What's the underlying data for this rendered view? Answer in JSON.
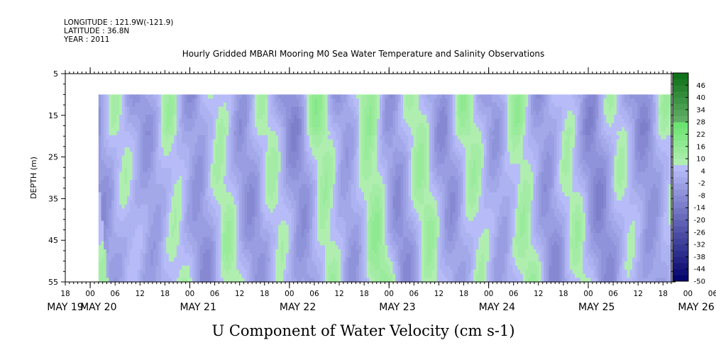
{
  "header": {
    "longitude": "LONGITUDE : 121.9W(-121.9)",
    "latitude": "LATITUDE : 36.8N",
    "year": "YEAR : 2011",
    "title": "Hourly Gridded MBARI Mooring M0 Sea Water Temperature and Salinity Observations"
  },
  "chart_data": {
    "type": "heatmap",
    "title": "Hourly Gridded MBARI Mooring M0 Sea Water Temperature and Salinity Observations",
    "xlabel": "U Component of Water Velocity (cm s-1)",
    "ylabel": "DEPTH (m)",
    "x_range_hours": [
      -6,
      140
    ],
    "x_data_start_hour": 2,
    "y_range": [
      5,
      55
    ],
    "y_data_range": [
      10,
      55
    ],
    "y_reversed": true,
    "y_ticks": [
      5,
      15,
      25,
      35,
      45,
      55
    ],
    "x_hour_ticks": [
      "18",
      "00",
      "06",
      "12",
      "18",
      "00",
      "06",
      "12",
      "18",
      "00",
      "06",
      "12",
      "18",
      "00",
      "06",
      "12",
      "18",
      "00",
      "06",
      "12",
      "18",
      "00",
      "06",
      "12",
      "18",
      "00",
      "06",
      "12",
      "18",
      "00",
      "06",
      "12",
      "18"
    ],
    "x_day_labels": [
      "MAY 19",
      "MAY 20",
      "MAY 21",
      "MAY 22",
      "MAY 23",
      "MAY 24",
      "MAY 25",
      "MAY 26"
    ],
    "colorbar": {
      "labels": [
        "46",
        "40",
        "34",
        "28",
        "22",
        "16",
        "10",
        "4",
        "-2",
        "-8",
        "-14",
        "-20",
        "-26",
        "-32",
        "-38",
        "-44",
        "-50"
      ],
      "min": -50,
      "max": 52,
      "step": 3
    },
    "dominant_u_profile": [
      {
        "hour": 2,
        "u": -5
      },
      {
        "hour": 8,
        "u": 6
      },
      {
        "hour": 14,
        "u": -4
      },
      {
        "hour": 20,
        "u": 9
      },
      {
        "hour": 26,
        "u": -6
      },
      {
        "hour": 32,
        "u": 10
      },
      {
        "hour": 38,
        "u": -5
      },
      {
        "hour": 44,
        "u": 8
      },
      {
        "hour": 50,
        "u": -7
      },
      {
        "hour": 56,
        "u": 12
      },
      {
        "hour": 62,
        "u": -4
      },
      {
        "hour": 68,
        "u": 14
      },
      {
        "hour": 74,
        "u": -6
      },
      {
        "hour": 80,
        "u": 11
      },
      {
        "hour": 86,
        "u": -5
      },
      {
        "hour": 92,
        "u": 10
      },
      {
        "hour": 98,
        "u": -3
      },
      {
        "hour": 104,
        "u": 12
      },
      {
        "hour": 110,
        "u": -6
      },
      {
        "hour": 116,
        "u": 9
      },
      {
        "hour": 122,
        "u": -8
      },
      {
        "hour": 128,
        "u": 7
      },
      {
        "hour": 134,
        "u": -6
      },
      {
        "hour": 140,
        "u": 8
      }
    ]
  },
  "colors": {
    "neg_light": "#b0b4f6",
    "neg_mid": "#8f98ee",
    "pos_light": "#a6f2a6",
    "pos_mid": "#55e655",
    "pos_strong": "#10d010"
  }
}
